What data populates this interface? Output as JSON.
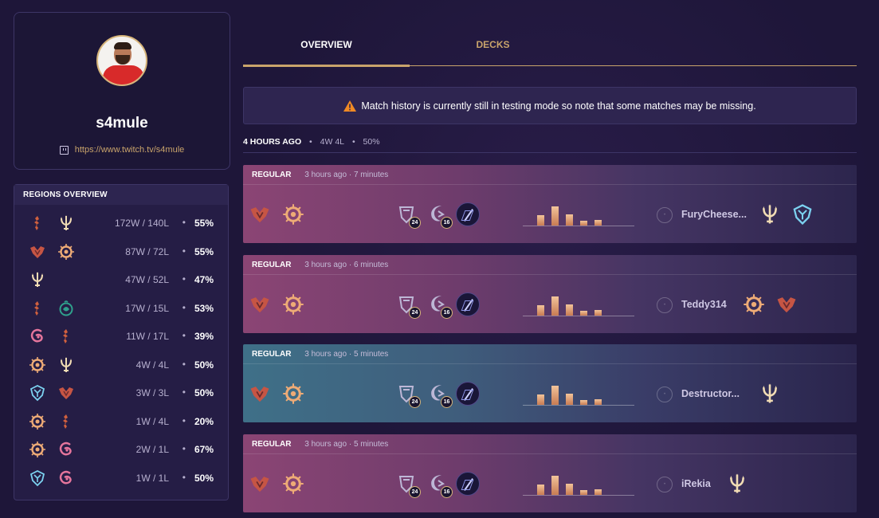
{
  "profile": {
    "name": "s4mule",
    "twitch_url": "https://www.twitch.tv/s4mule"
  },
  "regions_overview": {
    "title": "REGIONS OVERVIEW",
    "rows": [
      {
        "regions": [
          "noxus",
          "targon"
        ],
        "record": "172W / 140L",
        "winrate": "55%"
      },
      {
        "regions": [
          "noxus-crest",
          "mt-targon-sun"
        ],
        "record": "87W / 72L",
        "winrate": "55%"
      },
      {
        "regions": [
          "targon"
        ],
        "record": "47W / 52L",
        "winrate": "47%"
      },
      {
        "regions": [
          "noxus",
          "shadow-isles"
        ],
        "record": "17W / 15L",
        "winrate": "53%"
      },
      {
        "regions": [
          "bilgewater",
          "noxus"
        ],
        "record": "11W / 17L",
        "winrate": "39%"
      },
      {
        "regions": [
          "mt-targon-sun",
          "targon"
        ],
        "record": "4W / 4L",
        "winrate": "50%"
      },
      {
        "regions": [
          "freljord",
          "noxus-crest"
        ],
        "record": "3W / 3L",
        "winrate": "50%"
      },
      {
        "regions": [
          "mt-targon-sun",
          "noxus"
        ],
        "record": "1W / 4L",
        "winrate": "20%"
      },
      {
        "regions": [
          "mt-targon-sun",
          "bilgewater"
        ],
        "record": "2W / 1L",
        "winrate": "67%"
      },
      {
        "regions": [
          "freljord",
          "bilgewater"
        ],
        "record": "1W / 1L",
        "winrate": "50%"
      }
    ]
  },
  "tabs": [
    {
      "label": "OVERVIEW",
      "active": true
    },
    {
      "label": "DECKS",
      "active": false
    }
  ],
  "notice": "Match history is currently still in testing mode so note that some matches may be missing.",
  "session": {
    "time": "4 HOURS AGO",
    "record": "4W 4L",
    "winrate": "50%"
  },
  "matches": [
    {
      "type": "REGULAR",
      "time": "3 hours ago · 7 minutes",
      "result": "loss",
      "slot_counts": [
        "24",
        "16"
      ],
      "opponent": "FuryCheese...",
      "opponent_regions": [
        "targon",
        "freljord"
      ]
    },
    {
      "type": "REGULAR",
      "time": "3 hours ago · 6 minutes",
      "result": "loss",
      "slot_counts": [
        "24",
        "16"
      ],
      "opponent": "Teddy314",
      "opponent_regions": [
        "mt-targon-sun",
        "noxus-crest"
      ]
    },
    {
      "type": "REGULAR",
      "time": "3 hours ago · 5 minutes",
      "result": "win",
      "slot_counts": [
        "24",
        "16"
      ],
      "opponent": "Destructor...",
      "opponent_regions": [
        "targon"
      ]
    },
    {
      "type": "REGULAR",
      "time": "3 hours ago · 5 minutes",
      "result": "loss",
      "slot_counts": [
        "24",
        "16"
      ],
      "opponent": "iRekia",
      "opponent_regions": [
        "targon"
      ]
    }
  ],
  "mana_curve": [
    0.45,
    0.85,
    0.5,
    0.2,
    0.25
  ],
  "colors": {
    "gold": "#c9a46b",
    "loss_gradient": "#8b4574",
    "win_gradient": "#3f7088"
  }
}
